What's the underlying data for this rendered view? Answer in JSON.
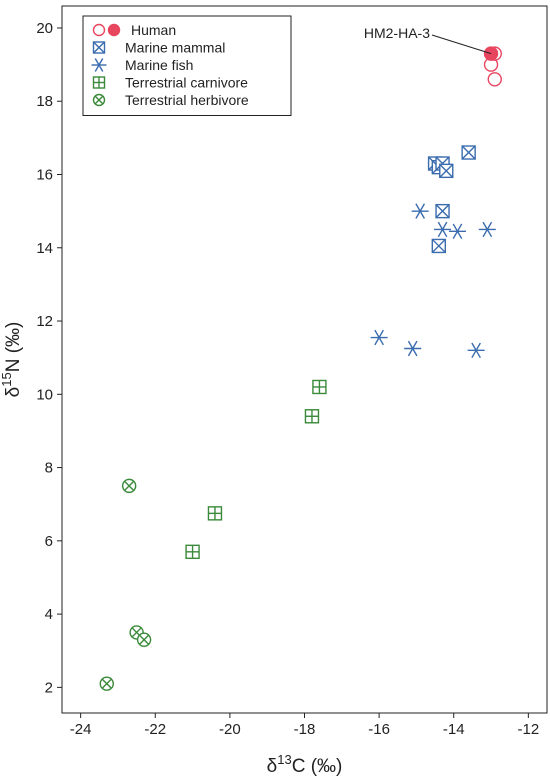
{
  "chart_data": {
    "type": "scatter",
    "xlabel_main": "δ",
    "xlabel_sup": "13",
    "xlabel_rest": "C (‰)",
    "ylabel_main": "δ",
    "ylabel_sup": "15",
    "ylabel_rest": "N (‰)",
    "xlim": [
      -24.5,
      -11.5
    ],
    "ylim": [
      1.3,
      20.6
    ],
    "xticks": [
      -24,
      -22,
      -20,
      -18,
      -16,
      -14,
      -12
    ],
    "yticks": [
      2,
      4,
      6,
      8,
      10,
      12,
      14,
      16,
      18,
      20
    ],
    "legend_position": "top-left",
    "series": [
      {
        "name": "Human",
        "marker": "circle-open",
        "color": "#e8455f",
        "points": [
          [
            -13.0,
            19.0
          ],
          [
            -12.9,
            19.3
          ],
          [
            -12.9,
            18.6
          ]
        ]
      },
      {
        "name": "",
        "marker": "circle-filled",
        "color": "#e8455f",
        "points": [
          [
            -13.0,
            19.3
          ]
        ]
      },
      {
        "name": "Marine mammal",
        "marker": "square-x",
        "color": "#3a6cae",
        "points": [
          [
            -14.5,
            16.3
          ],
          [
            -14.4,
            16.2
          ],
          [
            -14.3,
            16.3
          ],
          [
            -14.2,
            16.1
          ],
          [
            -13.6,
            16.6
          ],
          [
            -14.3,
            15.0
          ],
          [
            -14.4,
            14.05
          ]
        ]
      },
      {
        "name": "Marine fish",
        "marker": "asterisk",
        "color": "#3a6cae",
        "points": [
          [
            -14.9,
            15.0
          ],
          [
            -14.3,
            14.5
          ],
          [
            -13.9,
            14.45
          ],
          [
            -13.1,
            14.5
          ],
          [
            -16.0,
            11.55
          ],
          [
            -15.1,
            11.25
          ],
          [
            -13.4,
            11.2
          ]
        ]
      },
      {
        "name": "Terrestrial carnivore",
        "marker": "square-plus",
        "color": "#3a8a3a",
        "points": [
          [
            -17.6,
            10.2
          ],
          [
            -17.8,
            9.4
          ],
          [
            -20.4,
            6.75
          ],
          [
            -21.0,
            5.7
          ]
        ]
      },
      {
        "name": "Terrestrial herbivore",
        "marker": "circle-x",
        "color": "#3a8a3a",
        "points": [
          [
            -22.7,
            7.5
          ],
          [
            -22.5,
            3.5
          ],
          [
            -22.3,
            3.3
          ],
          [
            -23.3,
            2.1
          ]
        ]
      }
    ],
    "annotation": {
      "text": "HM2-HA-3",
      "target": [
        -13.0,
        19.3
      ]
    }
  }
}
